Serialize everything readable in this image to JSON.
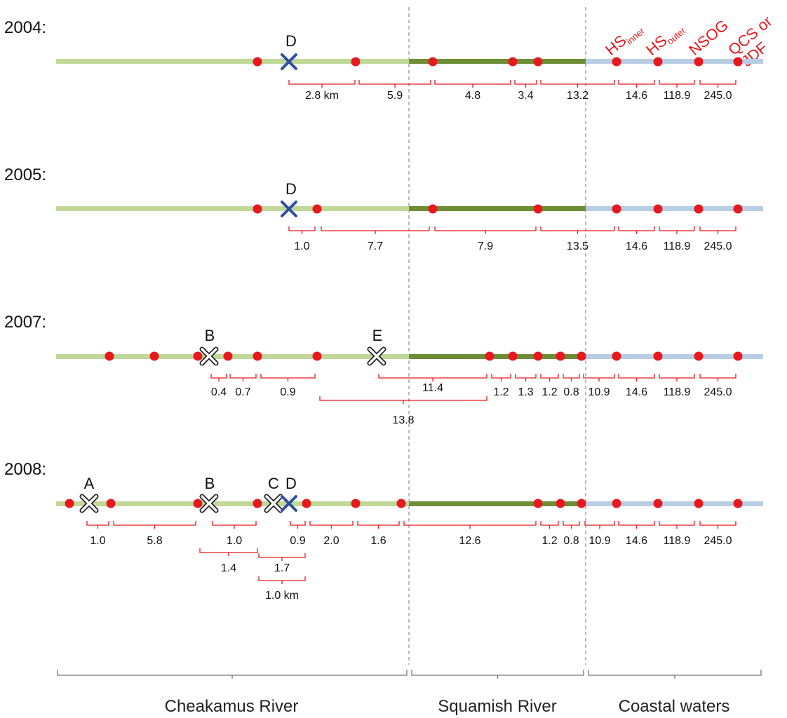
{
  "colors": {
    "cheakamus": "#c0d898",
    "squamish": "#6e8e35",
    "coastal": "#b7cee4",
    "receiver": "#e8191e",
    "bracket": "#e8191e",
    "x_blue": "#2f4ea0",
    "divider": "#999999",
    "region_bracket": "#777777"
  },
  "icons": {
    "receiver": "red-dot-icon",
    "release_site": "blue-x-icon",
    "other_site": "white-x-icon"
  },
  "habitat_labels": [
    {
      "main": "HS",
      "sub": "inner"
    },
    {
      "main": "HS",
      "sub": "outer"
    },
    {
      "main": "NSOG",
      "sub": ""
    },
    {
      "main": "QCS or",
      "sub": ""
    },
    {
      "main": "JDF",
      "sub": ""
    }
  ],
  "years": [
    {
      "label": "2004:",
      "receivers": [
        367,
        507,
        617,
        731,
        767,
        879,
        938,
        996,
        1052
      ],
      "sites": [
        {
          "id": "D",
          "style": "blue"
        }
      ],
      "distances": [
        "2.8 km",
        "5.9",
        "4.8",
        "3.4",
        "13.2",
        "14.6",
        "118.9",
        "245.0"
      ],
      "secondary": []
    },
    {
      "label": "2005:",
      "receivers": [
        367,
        452,
        617,
        767,
        879,
        938,
        996,
        1052
      ],
      "sites": [
        {
          "id": "D",
          "style": "blue"
        }
      ],
      "distances": [
        "1.0",
        "7.7",
        "7.9",
        "13.5",
        "14.6",
        "118.9",
        "245.0"
      ],
      "secondary": []
    },
    {
      "label": "2007:",
      "receivers": [
        156,
        220,
        282,
        325,
        367,
        452,
        698,
        731,
        767,
        799,
        829,
        879,
        938,
        996,
        1052
      ],
      "sites": [
        {
          "id": "B",
          "style": "white"
        },
        {
          "id": "E",
          "style": "white"
        }
      ],
      "distances": [
        "0.4",
        "0.7",
        "0.9",
        "11.4",
        "1.2",
        "1.3",
        "1.2",
        "0.8",
        "10.9",
        "14.6",
        "118.9",
        "245.0"
      ],
      "secondary": [
        "13.8"
      ]
    },
    {
      "label": "2008:",
      "receivers": [
        99,
        158,
        282,
        367,
        437,
        507,
        572,
        767,
        799,
        829,
        879,
        938,
        996,
        1052
      ],
      "sites": [
        {
          "id": "A",
          "style": "white"
        },
        {
          "id": "B",
          "style": "white"
        },
        {
          "id": "C",
          "style": "white"
        },
        {
          "id": "D",
          "style": "blue"
        }
      ],
      "distances": [
        "1.0",
        "5.8",
        "1.0",
        "0.9",
        "2.0",
        "1.6",
        "12.6",
        "1.2",
        "0.8",
        "10.9",
        "14.6",
        "118.9",
        "245.0"
      ],
      "secondary": [
        "1.4",
        "1.7",
        "1.0 km"
      ]
    }
  ],
  "regions": [
    "Cheakamus River",
    "Squamish River",
    "Coastal waters"
  ]
}
